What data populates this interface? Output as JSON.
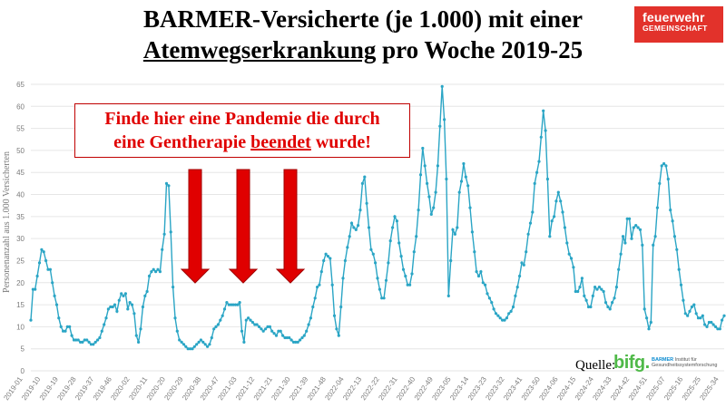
{
  "title": {
    "line1": "BARMER-Versicherte (je 1.000) mit einer",
    "line2_underlined": "Atemwegserkrankung",
    "line2_rest": " pro Woche 2019-25"
  },
  "logo": {
    "line1": "feuerwehr",
    "line2": "GEMEINSCHAFT",
    "color": "#e2322b"
  },
  "callout": {
    "line1": "Finde hier eine Pandemie die durch",
    "line2_pre": "eine Gentherapie ",
    "line2_underlined": "beendet",
    "line2_post": " wurde!",
    "color": "#e00000"
  },
  "source": {
    "label": "Quelle:",
    "brand": "bifg.",
    "brand_sub_bold": "BARMER",
    "brand_sub1": "Institut für",
    "brand_sub2": "Gesundheitssystemforschung"
  },
  "chart_data": {
    "type": "line",
    "title": "",
    "xlabel": "",
    "ylabel": "Personenanzahl aus 1.000 Versicherten",
    "ylim": [
      0,
      65
    ],
    "yticks": [
      0,
      5,
      10,
      15,
      20,
      25,
      30,
      35,
      40,
      45,
      50,
      55,
      60,
      65
    ],
    "grid": true,
    "line_color": "#2aa5c5",
    "arrow_color": "#e00000",
    "xtick_labels": [
      "2019-01",
      "2019-10",
      "2019-19",
      "2019-28",
      "2019-37",
      "2019-46",
      "2020-02",
      "2020-11",
      "2020-20",
      "2020-29",
      "2020-38",
      "2020-47",
      "2021-03",
      "2021-12",
      "2021-21",
      "2021-30",
      "2021-39",
      "2021-48",
      "2022-04",
      "2022-13",
      "2022-22",
      "2022-31",
      "2022-40",
      "2022-49",
      "2023-05",
      "2023-14",
      "2023-23",
      "2023-32",
      "2023-41",
      "2023-50",
      "2024-06",
      "2024-15",
      "2024-24",
      "2024-33",
      "2024-42",
      "2024-51",
      "2025-07",
      "2025-16",
      "2025-25",
      "2025-34"
    ],
    "series": [
      {
        "values": [
          11.5,
          18.5,
          18.5,
          21.5,
          24.5,
          27.5,
          27.0,
          25.0,
          23.0,
          23.0,
          20.0,
          17.0,
          15.0,
          12.0,
          10.0,
          9.0,
          9.0,
          10.0,
          10.0,
          8.0,
          7.0,
          7.0,
          7.0,
          6.5,
          6.5,
          7.0,
          7.0,
          6.5,
          6.0,
          6.0,
          6.5,
          7.0,
          7.5,
          9.0,
          10.5,
          12.0,
          14.0,
          14.5,
          14.5,
          15.0,
          13.5,
          16.0,
          17.5,
          17.0,
          17.5,
          14.0,
          15.5,
          15.0,
          13.0,
          8.0,
          6.5,
          9.5,
          14.5,
          17.0,
          18.0,
          21.5,
          22.5,
          23.0,
          22.5,
          23.0,
          22.5,
          27.5,
          31.0,
          42.5,
          42.0,
          31.5,
          19.0,
          12.0,
          9.0,
          7.0,
          6.5,
          6.0,
          5.5,
          5.0,
          5.0,
          5.0,
          5.5,
          6.0,
          6.5,
          7.0,
          6.5,
          6.0,
          5.5,
          6.0,
          7.5,
          9.5,
          10.0,
          10.5,
          11.5,
          12.5,
          14.0,
          15.5,
          15.0,
          15.0,
          15.0,
          15.0,
          15.0,
          15.5,
          9.0,
          6.5,
          11.5,
          12.0,
          11.5,
          11.0,
          10.5,
          10.5,
          10.0,
          9.5,
          9.0,
          9.5,
          10.0,
          10.0,
          9.0,
          8.5,
          8.0,
          9.0,
          9.0,
          8.0,
          7.5,
          7.5,
          7.5,
          7.0,
          6.5,
          6.5,
          6.5,
          7.0,
          7.5,
          8.0,
          9.0,
          10.5,
          12.0,
          14.5,
          16.5,
          19.0,
          19.5,
          22.5,
          25.0,
          26.5,
          26.0,
          25.5,
          19.5,
          12.5,
          9.5,
          8.0,
          14.5,
          21.0,
          25.0,
          28.0,
          30.5,
          33.5,
          32.5,
          32.0,
          33.0,
          36.5,
          42.5,
          44.0,
          38.0,
          32.5,
          27.5,
          26.5,
          24.5,
          21.0,
          18.5,
          16.5,
          16.5,
          20.5,
          24.5,
          29.5,
          32.5,
          35.0,
          34.0,
          29.0,
          26.0,
          23.0,
          21.5,
          19.5,
          19.5,
          22.0,
          27.0,
          30.5,
          36.5,
          44.5,
          50.5,
          46.5,
          42.5,
          39.5,
          35.5,
          37.0,
          40.5,
          46.5,
          55.5,
          64.5,
          57.0,
          43.5,
          17.0,
          25.0,
          32.0,
          31.0,
          32.5,
          40.5,
          43.0,
          47.0,
          44.0,
          42.0,
          37.0,
          31.5,
          27.0,
          22.5,
          21.5,
          22.5,
          20.0,
          19.5,
          17.5,
          16.5,
          15.5,
          14.0,
          13.0,
          12.5,
          12.0,
          11.5,
          11.5,
          12.0,
          13.0,
          13.5,
          14.5,
          17.0,
          19.0,
          21.5,
          24.5,
          24.0,
          27.0,
          31.0,
          33.5,
          36.0,
          42.5,
          45.0,
          47.5,
          53.0,
          59.0,
          54.5,
          43.5,
          30.5,
          34.0,
          35.0,
          38.5,
          40.5,
          38.5,
          36.0,
          32.5,
          29.0,
          26.5,
          25.5,
          23.5,
          18.0,
          18.0,
          19.0,
          21.0,
          17.0,
          16.0,
          14.5,
          14.5,
          17.0,
          19.0,
          18.5,
          19.0,
          18.5,
          18.0,
          15.5,
          14.5,
          14.0,
          15.5,
          16.5,
          19.0,
          23.0,
          26.5,
          30.5,
          29.0,
          34.5,
          34.5,
          30.0,
          32.5,
          33.0,
          32.5,
          32.0,
          28.5,
          14.0,
          12.0,
          9.5,
          11.0,
          28.5,
          30.5,
          37.0,
          42.5,
          46.5,
          47.0,
          46.5,
          43.5,
          36.5,
          34.0,
          30.5,
          27.5,
          23.0,
          19.5,
          16.0,
          13.0,
          12.5,
          13.5,
          14.5,
          15.0,
          13.0,
          12.0,
          12.0,
          12.5,
          10.5,
          10.0,
          11.0,
          11.0,
          10.5,
          10.0,
          9.5,
          9.5,
          11.5,
          12.5
        ]
      }
    ]
  }
}
